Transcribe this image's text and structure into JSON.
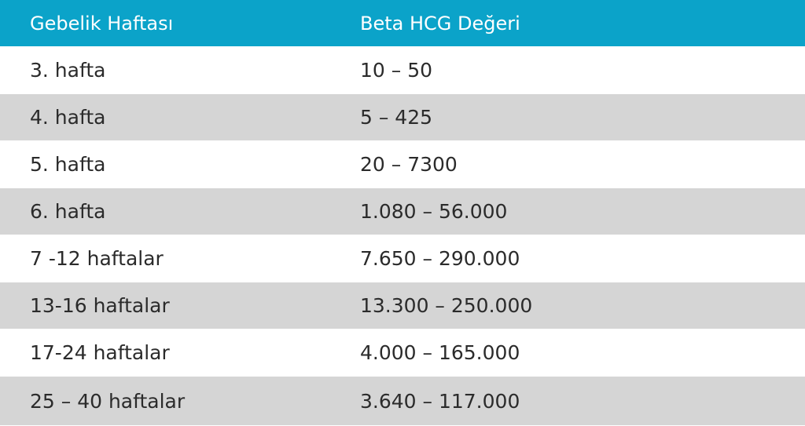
{
  "table": {
    "header": [
      "Gebelik Haftası",
      "Beta HCG Değeri"
    ],
    "rows": [
      [
        "3. hafta",
        "10 – 50"
      ],
      [
        "4. hafta",
        "5 – 425"
      ],
      [
        "5. hafta",
        "20 – 7300"
      ],
      [
        "6. hafta",
        "1.080 – 56.000"
      ],
      [
        "7 -12 haftalar",
        "7.650 – 290.000"
      ],
      [
        "13-16 haftalar",
        "13.300 – 250.000"
      ],
      [
        "17-24 haftalar",
        "4.000 – 165.000"
      ],
      [
        "25 – 40 haftalar",
        "3.640 – 117.000"
      ]
    ]
  }
}
